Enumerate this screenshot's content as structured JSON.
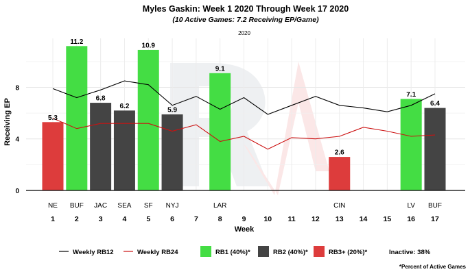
{
  "chart_data": {
    "type": "bar",
    "title": "Myles Gaskin: Week 1 2020 Through Week 17 2020",
    "subtitle": "(10 Active Games: 7.2 Receiving EP/Game)",
    "caption_top": "2020",
    "xlabel": "Week",
    "ylabel": "Receiving EP",
    "ylim": [
      0,
      11.8
    ],
    "yticks": [
      0,
      4,
      8
    ],
    "weeks": [
      1,
      2,
      3,
      4,
      5,
      6,
      7,
      8,
      9,
      10,
      11,
      12,
      13,
      14,
      15,
      16,
      17
    ],
    "opponents": [
      "NE",
      "BUF",
      "JAC",
      "SEA",
      "SF",
      "NYJ",
      "",
      "LAR",
      "",
      "",
      "",
      "",
      "CIN",
      "",
      "",
      "LV",
      "BUF"
    ],
    "bars": [
      {
        "week": 1,
        "value": 5.3,
        "label": "5.3",
        "tier": "rb3"
      },
      {
        "week": 2,
        "value": 11.2,
        "label": "11.2",
        "tier": "rb1"
      },
      {
        "week": 3,
        "value": 6.8,
        "label": "6.8",
        "tier": "rb2"
      },
      {
        "week": 4,
        "value": 6.2,
        "label": "6.2",
        "tier": "rb2"
      },
      {
        "week": 5,
        "value": 10.9,
        "label": "10.9",
        "tier": "rb1"
      },
      {
        "week": 6,
        "value": 5.9,
        "label": "5.9",
        "tier": "rb2"
      },
      {
        "week": 8,
        "value": 9.1,
        "label": "9.1",
        "tier": "rb1"
      },
      {
        "week": 13,
        "value": 2.6,
        "label": "2.6",
        "tier": "rb3"
      },
      {
        "week": 16,
        "value": 7.1,
        "label": "7.1",
        "tier": "rb1"
      },
      {
        "week": 17,
        "value": 6.4,
        "label": "6.4",
        "tier": "rb2"
      }
    ],
    "series": [
      {
        "name": "Weekly RB12",
        "color": "#000000",
        "values": [
          7.9,
          7.2,
          7.8,
          8.5,
          8.2,
          6.6,
          7.3,
          6.3,
          7.2,
          5.9,
          6.6,
          7.3,
          6.6,
          6.4,
          6.1,
          6.6,
          7.5
        ]
      },
      {
        "name": "Weekly RB24",
        "color": "#cc1111",
        "values": [
          5.6,
          4.8,
          5.2,
          5.2,
          5.2,
          4.6,
          5.1,
          3.8,
          4.2,
          3.2,
          4.1,
          4.0,
          4.2,
          4.9,
          4.6,
          4.2,
          4.3
        ]
      }
    ],
    "tiers": {
      "rb1": {
        "label": "RB1 (40%)*",
        "color": "#44dd44"
      },
      "rb2": {
        "label": "RB2 (40%)*",
        "color": "#444444"
      },
      "rb3": {
        "label": "RB3+ (20%)*",
        "color": "#dd3c3c"
      }
    },
    "inactive_label": "Inactive: 38%",
    "footnote": "*Percent of Active Games",
    "grid": true,
    "legend_position": "bottom"
  }
}
